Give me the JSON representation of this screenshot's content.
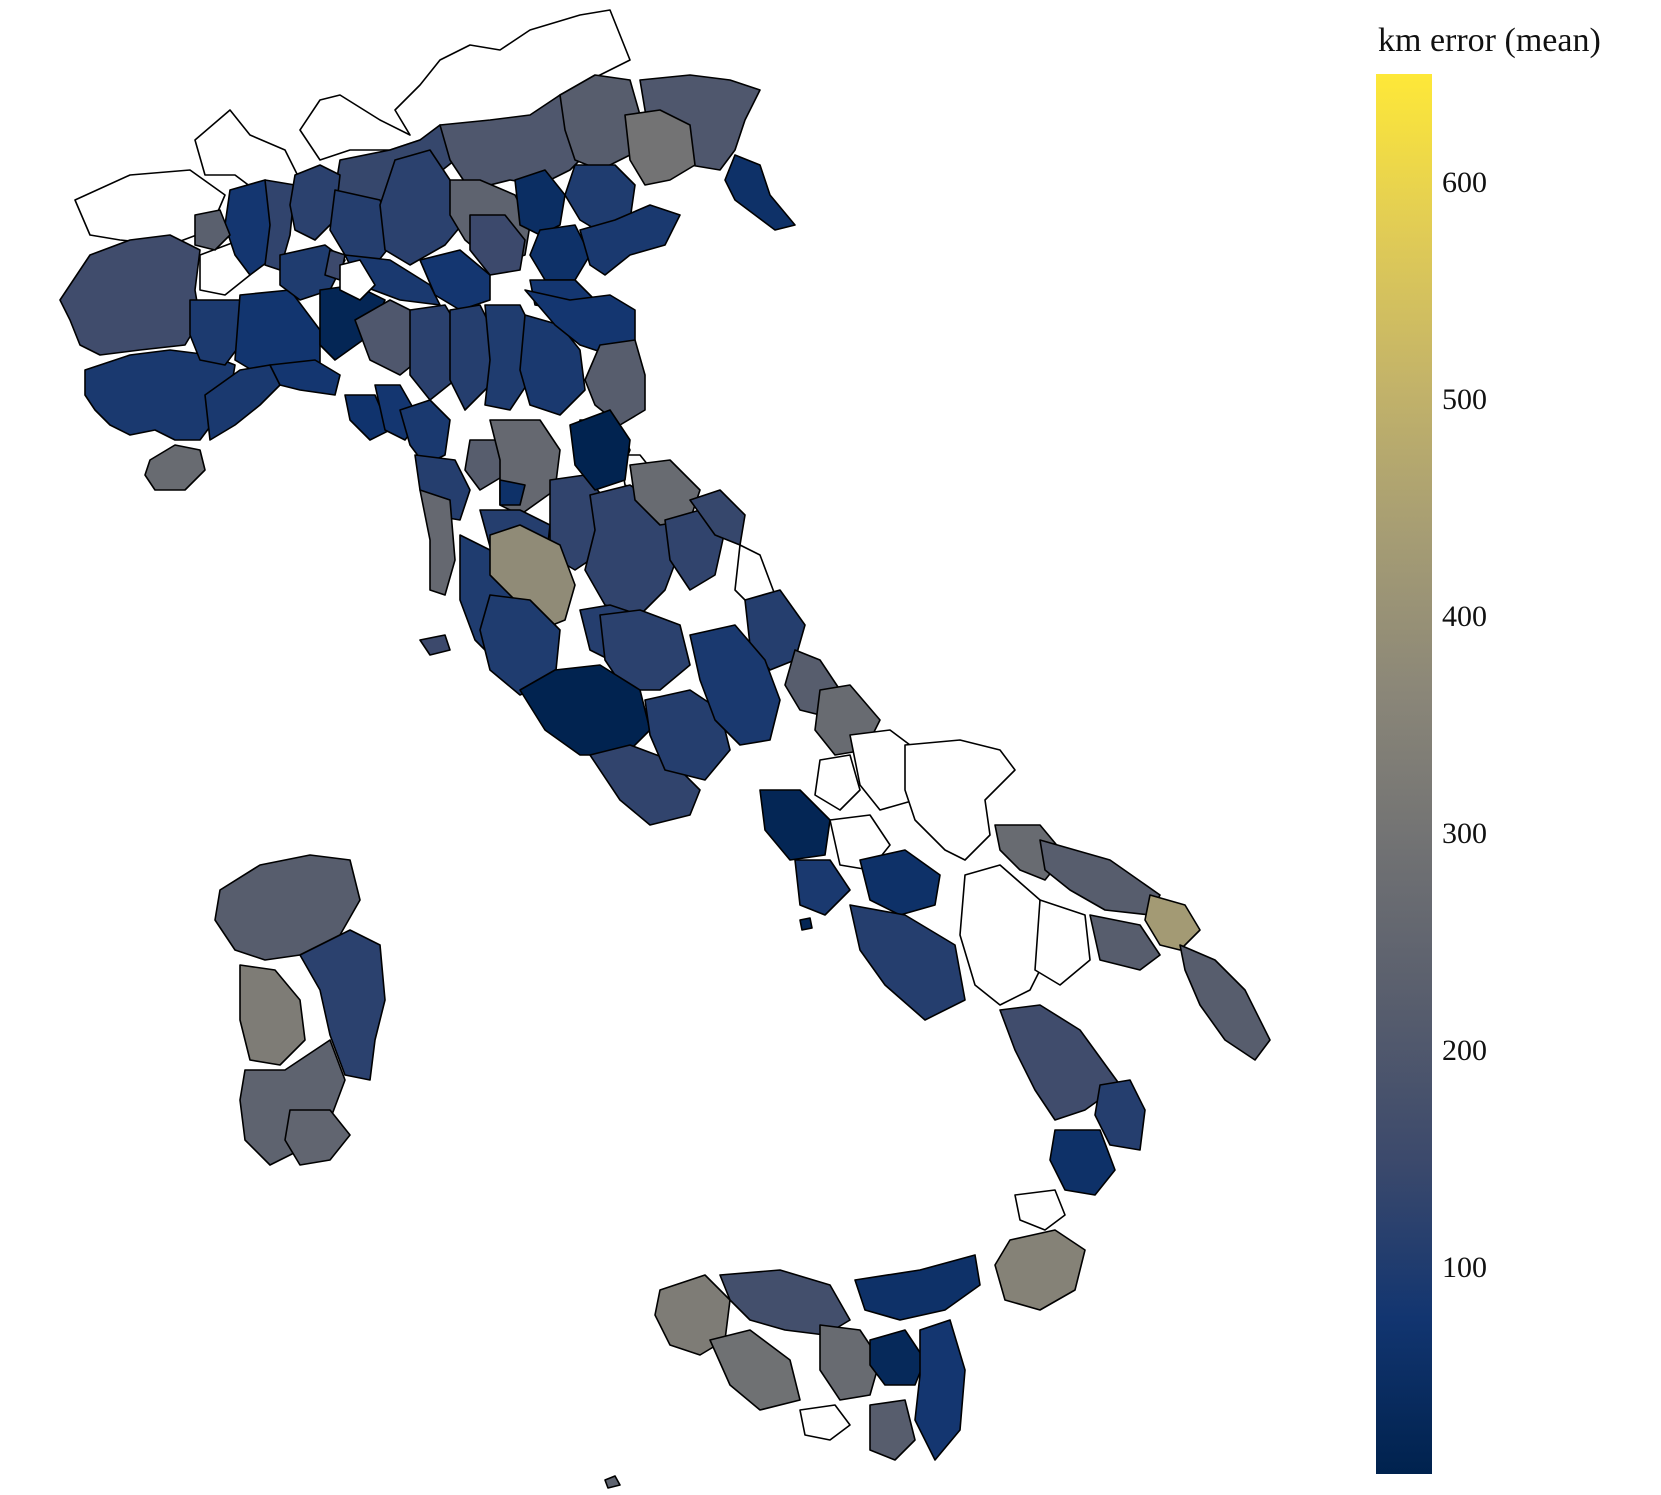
{
  "legend": {
    "title": "km error (mean)",
    "min": 5,
    "max": 650,
    "ticks": [
      {
        "label": "100",
        "value": 100
      },
      {
        "label": "200",
        "value": 200
      },
      {
        "label": "300",
        "value": 300
      },
      {
        "label": "400",
        "value": 400
      },
      {
        "label": "500",
        "value": 500
      },
      {
        "label": "600",
        "value": 600
      }
    ],
    "colors": [
      "#00224e",
      "#123570",
      "#3b496c",
      "#575d6d",
      "#707173",
      "#8a8678",
      "#a59c74",
      "#c3b369",
      "#e1cc55",
      "#fee838"
    ]
  },
  "colors": {
    "no_data": "#ffffff",
    "border": "#000000"
  },
  "chart_data": {
    "type": "choropleth",
    "title": "",
    "colorbar_label": "km error (mean)",
    "scale": "cividis",
    "range": [
      5,
      650
    ],
    "regions": [
      {
        "area": "Piemonte",
        "values": [
          160,
          90,
          95,
          75,
          80,
          130,
          110,
          230
        ]
      },
      {
        "area": "Valle d'Aosta",
        "values": [
          null
        ]
      },
      {
        "area": "Lombardia",
        "values": [
          140,
          120,
          110,
          60,
          120,
          150,
          100,
          90,
          80,
          20
        ]
      },
      {
        "area": "Trentino-Alto Adige",
        "values": [
          200,
          240
        ]
      },
      {
        "area": "Veneto",
        "values": [
          150,
          50,
          100,
          220,
          60,
          90,
          80
        ]
      },
      {
        "area": "Friuli-Venezia Giulia",
        "values": [
          200,
          300,
          60
        ]
      },
      {
        "area": "Liguria",
        "values": [
          90,
          80,
          70,
          260
        ]
      },
      {
        "area": "Emilia-Romagna",
        "values": [
          200,
          120,
          110,
          100,
          90,
          80,
          10,
          null,
          220
        ]
      },
      {
        "area": "Toscana",
        "values": [
          260,
          80,
          90,
          110,
          220,
          260,
          110,
          80,
          100,
          60,
          270
        ]
      },
      {
        "area": "Umbria",
        "values": [
          130,
          380
        ]
      },
      {
        "area": "Marche",
        "values": [
          10,
          270,
          130,
          140,
          null
        ]
      },
      {
        "area": "Lazio",
        "values": [
          100,
          120,
          110,
          10,
          130
        ]
      },
      {
        "area": "Abruzzo",
        "values": [
          110,
          90,
          220,
          270
        ]
      },
      {
        "area": "Molise",
        "values": [
          null,
          null
        ]
      },
      {
        "area": "Campania",
        "values": [
          140,
          90,
          20,
          null,
          60,
          110
        ]
      },
      {
        "area": "Puglia",
        "values": [
          null,
          270,
          220,
          430,
          220
        ]
      },
      {
        "area": "Basilicata",
        "values": [
          null,
          null
        ]
      },
      {
        "area": "Calabria",
        "values": [
          160,
          110,
          60,
          null,
          350
        ]
      },
      {
        "area": "Sicilia",
        "values": [
          330,
          170,
          290,
          270,
          60,
          30,
          null,
          80,
          220
        ]
      },
      {
        "area": "Sardegna",
        "values": [
          220,
          120,
          330,
          240,
          250
        ]
      }
    ]
  }
}
